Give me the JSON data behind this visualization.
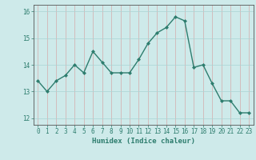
{
  "x": [
    0,
    1,
    2,
    3,
    4,
    5,
    6,
    7,
    8,
    9,
    10,
    11,
    12,
    13,
    14,
    15,
    16,
    17,
    18,
    19,
    20,
    21,
    22,
    23
  ],
  "y": [
    13.4,
    13.0,
    13.4,
    13.6,
    14.0,
    13.7,
    14.5,
    14.1,
    13.7,
    13.7,
    13.7,
    14.2,
    14.8,
    15.2,
    15.4,
    15.8,
    15.65,
    13.9,
    14.0,
    13.3,
    12.65,
    12.65,
    12.2,
    12.2
  ],
  "line_color": "#2e7d6e",
  "marker": "D",
  "marker_size": 2.0,
  "bg_color": "#ceeaea",
  "grid_color": "#aad4d4",
  "xlabel": "Humidex (Indice chaleur)",
  "xlim": [
    -0.5,
    23.5
  ],
  "ylim": [
    11.75,
    16.25
  ],
  "yticks": [
    12,
    13,
    14,
    15,
    16
  ],
  "xticks": [
    0,
    1,
    2,
    3,
    4,
    5,
    6,
    7,
    8,
    9,
    10,
    11,
    12,
    13,
    14,
    15,
    16,
    17,
    18,
    19,
    20,
    21,
    22,
    23
  ],
  "tick_fontsize": 5.5,
  "xlabel_fontsize": 6.5,
  "axis_color": "#2e7d6e",
  "spine_color": "#555555",
  "line_width": 1.0
}
